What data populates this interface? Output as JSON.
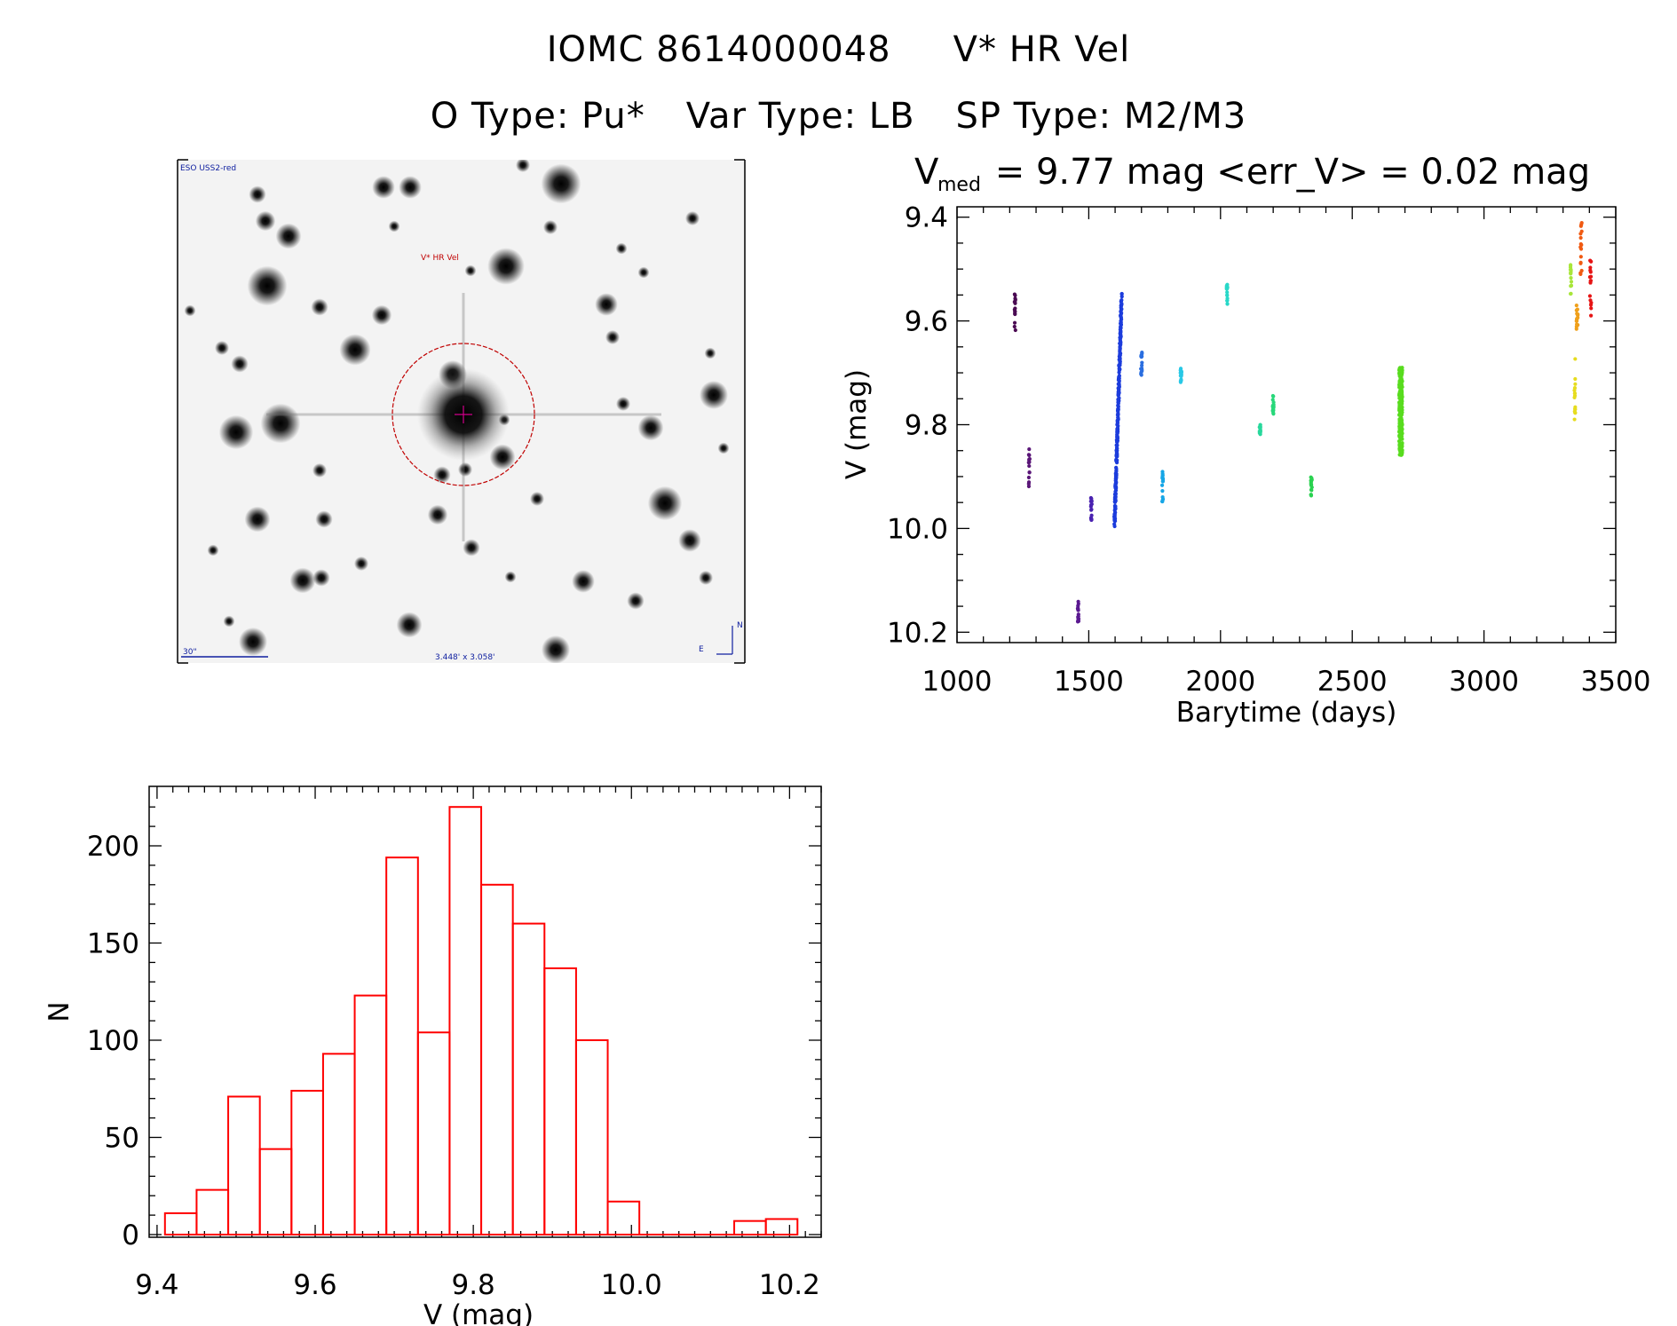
{
  "header": {
    "id": "IOMC 8614000048",
    "star": "V* HR Vel",
    "otype": "O Type: Pu*",
    "vartype": "Var Type: LB",
    "sptype": "SP Type: M2/M3"
  },
  "finder": {
    "survey": "ESO USS2-red",
    "target": "V* HR Vel",
    "scale": "30\"",
    "fov": "3.448' x 3.058'",
    "north": "N",
    "east": "E"
  },
  "lightcurve": {
    "vmed_prefix": "V",
    "vmed_sub": "med",
    "vmed_rest": " = 9.77 mag <err_V> = 0.02 mag"
  },
  "chart_data": [
    {
      "type": "scatter",
      "title": "V_med = 9.77 mag <err_V> = 0.02 mag",
      "xlabel": "Barytime (days)",
      "ylabel": "V (mag)",
      "xlim": [
        1000,
        3500
      ],
      "ylim": [
        10.22,
        9.38
      ],
      "xticks": [
        "1000",
        "1500",
        "2000",
        "2500",
        "3000",
        "3500"
      ],
      "yticks": [
        "9.4",
        "9.6",
        "9.8",
        "10.0",
        "10.2"
      ],
      "ytick_values": [
        9.4,
        9.6,
        9.8,
        10.0,
        10.2
      ],
      "series": [
        {
          "x_start": 1218,
          "x_end": 1222,
          "y_min": 9.545,
          "y_max": 9.62,
          "color": "#4a0a52"
        },
        {
          "x_start": 1272,
          "x_end": 1276,
          "y_min": 9.84,
          "y_max": 9.92,
          "color": "#5a1678"
        },
        {
          "x_start": 1458,
          "x_end": 1462,
          "y_min": 10.14,
          "y_max": 10.18,
          "color": "#5a1890"
        },
        {
          "x_start": 1508,
          "x_end": 1512,
          "y_min": 9.94,
          "y_max": 9.99,
          "color": "#4a22b0"
        },
        {
          "x_start": 1598,
          "x_end": 1625,
          "y_min": 9.55,
          "y_max": 9.99,
          "color": "#1c3cdc"
        },
        {
          "x_start": 1698,
          "x_end": 1702,
          "y_min": 9.655,
          "y_max": 9.71,
          "color": "#2a6ee0"
        },
        {
          "x_start": 1778,
          "x_end": 1782,
          "y_min": 9.89,
          "y_max": 9.96,
          "color": "#16a6e6"
        },
        {
          "x_start": 1848,
          "x_end": 1852,
          "y_min": 9.69,
          "y_max": 9.72,
          "color": "#28c8e6"
        },
        {
          "x_start": 2023,
          "x_end": 2027,
          "y_min": 9.53,
          "y_max": 9.57,
          "color": "#28d8c8"
        },
        {
          "x_start": 2148,
          "x_end": 2152,
          "y_min": 9.8,
          "y_max": 9.82,
          "color": "#28d89c"
        },
        {
          "x_start": 2198,
          "x_end": 2202,
          "y_min": 9.74,
          "y_max": 9.78,
          "color": "#28d87a"
        },
        {
          "x_start": 2343,
          "x_end": 2347,
          "y_min": 9.9,
          "y_max": 9.94,
          "color": "#2ad250"
        },
        {
          "x_start": 2678,
          "x_end": 2690,
          "y_min": 9.69,
          "y_max": 9.86,
          "color": "#58dc1e"
        },
        {
          "x_start": 3328,
          "x_end": 3332,
          "y_min": 9.49,
          "y_max": 9.55,
          "color": "#a8e63a"
        },
        {
          "x_start": 3343,
          "x_end": 3347,
          "y_min": 9.67,
          "y_max": 9.8,
          "color": "#e6dc1e"
        },
        {
          "x_start": 3351,
          "x_end": 3356,
          "y_min": 9.57,
          "y_max": 9.63,
          "color": "#f0a01a"
        },
        {
          "x_start": 3366,
          "x_end": 3371,
          "y_min": 9.41,
          "y_max": 9.52,
          "color": "#f05a12"
        },
        {
          "x_start": 3402,
          "x_end": 3407,
          "y_min": 9.48,
          "y_max": 9.6,
          "color": "#e61414"
        }
      ]
    },
    {
      "type": "bar",
      "title": "",
      "xlabel": "V (mag)",
      "ylabel": "N",
      "xlim": [
        9.39,
        10.24
      ],
      "ylim": [
        0,
        230
      ],
      "xticks": [
        "9.4",
        "9.6",
        "9.8",
        "10.0",
        "10.2"
      ],
      "xtick_values": [
        9.4,
        9.6,
        9.8,
        10.0,
        10.2
      ],
      "yticks": [
        "0",
        "50",
        "100",
        "150",
        "200"
      ],
      "ytick_values": [
        0,
        50,
        100,
        150,
        200
      ],
      "bin_start": 9.41,
      "bin_width": 0.04,
      "values": [
        11,
        23,
        71,
        44,
        74,
        93,
        123,
        194,
        104,
        220,
        180,
        160,
        137,
        100,
        17,
        0,
        0,
        0,
        7,
        8
      ],
      "color": "#ff0000"
    }
  ]
}
